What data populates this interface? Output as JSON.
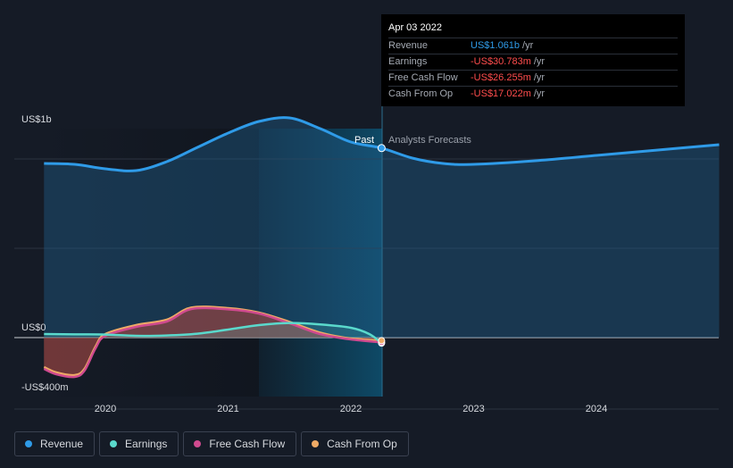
{
  "chart_data": {
    "type": "area",
    "y_axis_labels": [
      "US$1b",
      "US$0",
      "-US$400m"
    ],
    "x_ticks": [
      "2020",
      "2021",
      "2022",
      "2023",
      "2024"
    ],
    "ylim_millions": [
      -400,
      1100
    ],
    "past_label": "Past",
    "forecast_label": "Analysts Forecasts",
    "series": [
      {
        "name": "Revenue",
        "color": "#2f9be8",
        "past_x": [
          2019.5,
          2019.75,
          2020.0,
          2020.25,
          2020.5,
          2020.75,
          2021.0,
          2021.25,
          2021.5,
          2021.75,
          2022.0,
          2022.25
        ],
        "past_y_millions": [
          975,
          970,
          945,
          935,
          985,
          1065,
          1145,
          1210,
          1230,
          1170,
          1095,
          1061
        ],
        "forecast_x": [
          2022.25,
          2022.5,
          2022.75,
          2023.0,
          2023.5,
          2024.0,
          2024.5,
          2025.0
        ],
        "forecast_y_millions": [
          1061,
          1005,
          975,
          970,
          990,
          1020,
          1050,
          1080
        ]
      },
      {
        "name": "Earnings",
        "color": "#5ad9cc",
        "x": [
          2019.5,
          2019.75,
          2020.0,
          2020.25,
          2020.5,
          2020.75,
          2021.0,
          2021.25,
          2021.5,
          2021.75,
          2022.0,
          2022.15,
          2022.25
        ],
        "y_millions": [
          20,
          18,
          17,
          10,
          12,
          22,
          45,
          70,
          82,
          74,
          55,
          20,
          -30.783
        ]
      },
      {
        "name": "Free Cash Flow",
        "color": "#d04a8f",
        "x": [
          2019.5,
          2019.6,
          2019.75,
          2019.83,
          2019.92,
          2020.0,
          2020.25,
          2020.5,
          2020.7,
          2021.0,
          2021.25,
          2021.5,
          2021.75,
          2022.0,
          2022.25
        ],
        "y_millions": [
          -175,
          -205,
          -220,
          -185,
          -60,
          10,
          60,
          90,
          160,
          158,
          135,
          80,
          20,
          -10,
          -26.255
        ]
      },
      {
        "name": "Cash From Op",
        "color": "#eeaa66",
        "x": [
          2019.5,
          2019.6,
          2019.75,
          2019.83,
          2019.92,
          2020.0,
          2020.25,
          2020.5,
          2020.7,
          2021.0,
          2021.25,
          2021.5,
          2021.75,
          2022.0,
          2022.25
        ],
        "y_millions": [
          -165,
          -195,
          -210,
          -175,
          -50,
          20,
          70,
          100,
          168,
          165,
          140,
          88,
          28,
          -5,
          -17.022
        ]
      }
    ]
  },
  "tooltip": {
    "date": "Apr 03 2022",
    "rows": [
      {
        "label": "Revenue",
        "value": "US$1.061b",
        "unit": "/yr",
        "color": "#2f9be8"
      },
      {
        "label": "Earnings",
        "value": "-US$30.783m",
        "unit": "/yr",
        "color": "#ff4d4d"
      },
      {
        "label": "Free Cash Flow",
        "value": "-US$26.255m",
        "unit": "/yr",
        "color": "#ff4d4d"
      },
      {
        "label": "Cash From Op",
        "value": "-US$17.022m",
        "unit": "/yr",
        "color": "#ff4d4d"
      }
    ]
  },
  "legend": [
    {
      "label": "Revenue",
      "color": "#2f9be8"
    },
    {
      "label": "Earnings",
      "color": "#5ad9cc"
    },
    {
      "label": "Free Cash Flow",
      "color": "#d04a8f"
    },
    {
      "label": "Cash From Op",
      "color": "#eeaa66"
    }
  ]
}
